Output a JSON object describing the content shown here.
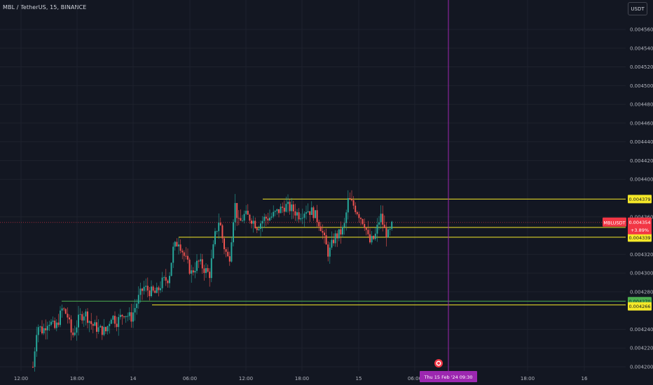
{
  "header": {
    "symbol_title": "MBL / TetherUS, 15, BINANCE",
    "unit_button": "USDT"
  },
  "colors": {
    "background": "#131722",
    "grid": "#1e222d",
    "up": "#26a69a",
    "down": "#ef5350",
    "level_line": "#f5e829",
    "support_line": "#4caf50",
    "crosshair": "#9c27b0",
    "price_line": "#f23645"
  },
  "chart_data": {
    "type": "candlestick",
    "symbol": "MBL / TetherUS",
    "interval": "15",
    "exchange": "BINANCE",
    "y_ticks": [
      "0.004560",
      "0.004540",
      "0.004520",
      "0.004500",
      "0.004480",
      "0.004460",
      "0.004440",
      "0.004420",
      "0.004400",
      "0.004360",
      "0.004320",
      "0.004300",
      "0.004280",
      "0.004240",
      "0.004220",
      "0.004200"
    ],
    "x_ticks": [
      "12:00",
      "18:00",
      "14",
      "06:00",
      "12:00",
      "18:00",
      "15",
      "06:00",
      "18:00",
      "16"
    ],
    "level_labels": [
      {
        "text": "0.004379",
        "kind": "level"
      },
      {
        "text": "0.004348",
        "kind": "level"
      },
      {
        "text": "0.004339",
        "kind": "level"
      },
      {
        "text": "0.004270",
        "kind": "support"
      },
      {
        "text": "0.004266",
        "kind": "level"
      }
    ],
    "current_price": {
      "symbol": "MBLUSDT",
      "price": "0.004354",
      "change": "+3.89%"
    },
    "crosshair_time": "Thu 15 Feb '24   09:30"
  }
}
